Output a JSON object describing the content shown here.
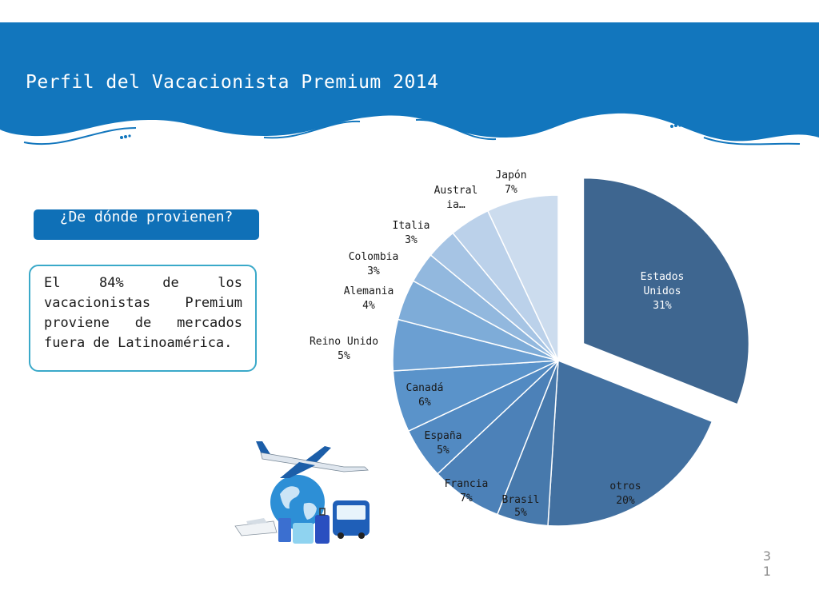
{
  "header": {
    "title": "Perfil del Vacacionista Premium 2014",
    "background_color": "#1276bd"
  },
  "question": {
    "text": "¿De dónde provienen?"
  },
  "note": {
    "text": "El 84% de los vacacionistas Premium proviene de mercados fuera de Latinoamérica."
  },
  "illustration": {
    "icon": "travel-illustration-icon"
  },
  "page_number": "31",
  "chart_data": {
    "type": "pie",
    "title": "",
    "exploded": "Estados Unidos",
    "slices": [
      {
        "label": "Estados Unidos",
        "value": 31,
        "display": "31%",
        "color": "#3e6690",
        "text_color": "#ffffff"
      },
      {
        "label": "otros",
        "value": 20,
        "display": "20%",
        "color": "#4270a0",
        "text_color": "#1a1a1a"
      },
      {
        "label": "Brasil",
        "value": 5,
        "display": "5%",
        "color": "#4779ac",
        "text_color": "#1a1a1a"
      },
      {
        "label": "Francia",
        "value": 7,
        "display": "7%",
        "color": "#4c81b8",
        "text_color": "#1a1a1a"
      },
      {
        "label": "España",
        "value": 5,
        "display": "5%",
        "color": "#528ac2",
        "text_color": "#1a1a1a"
      },
      {
        "label": "Canadá",
        "value": 6,
        "display": "6%",
        "color": "#5a93ca",
        "text_color": "#1a1a1a"
      },
      {
        "label": "Reino Unido",
        "value": 5,
        "display": "5%",
        "color": "#6b9fd2",
        "text_color": "#1a1a1a"
      },
      {
        "label": "Alemania",
        "value": 4,
        "display": "4%",
        "color": "#7eacd8",
        "text_color": "#1a1a1a"
      },
      {
        "label": "Colombia",
        "value": 3,
        "display": "3%",
        "color": "#92b8de",
        "text_color": "#1a1a1a"
      },
      {
        "label": "Italia",
        "value": 3,
        "display": "3%",
        "color": "#a6c4e4",
        "text_color": "#1a1a1a"
      },
      {
        "label": "Austral ia…",
        "value": 4,
        "display": "",
        "color": "#bbd1ea",
        "text_color": "#1a1a1a"
      },
      {
        "label": "Japón",
        "value": 7,
        "display": "7%",
        "color": "#ccdcee",
        "text_color": "#1a1a1a"
      }
    ]
  }
}
